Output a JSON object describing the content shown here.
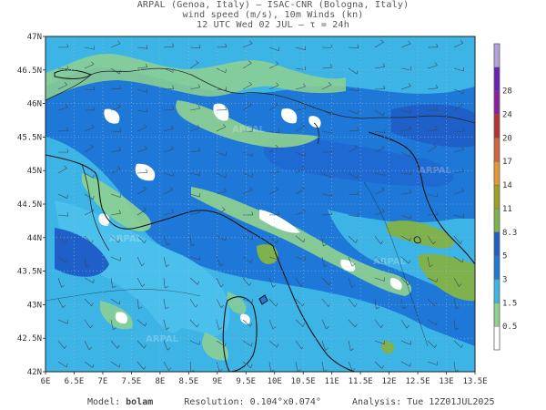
{
  "header": {
    "line1": "ARPAL (Genoa, Italy)  —  ISAC-CNR (Bologna, Italy)",
    "line2": "wind speed (m/s), 10m Winds (kn)",
    "line3": "12 UTC Wed 02 JUL  —  τ = 24h"
  },
  "map": {
    "lat_ticks": [
      "47N",
      "46.5N",
      "46N",
      "45.5N",
      "45N",
      "44.5N",
      "44N",
      "43.5N",
      "43N",
      "42.5N",
      "42N"
    ],
    "lon_ticks": [
      "6E",
      "6.5E",
      "7E",
      "7.5E",
      "8E",
      "8.5E",
      "9E",
      "9.5E",
      "10E",
      "10.5E",
      "11E",
      "11.5E",
      "12E",
      "12.5E",
      "13E",
      "13.5E"
    ],
    "lon_range": [
      6,
      13.5
    ],
    "lat_range": [
      42,
      47
    ],
    "watermark": "ARPAL"
  },
  "colorbar": {
    "labels": [
      "0.5",
      "1.5",
      "3",
      "5",
      "8.3",
      "11",
      "14",
      "17",
      "20",
      "24",
      "28"
    ],
    "colors": [
      "#ffffff",
      "#8fd18f",
      "#3cb4e6",
      "#1e78d7",
      "#1e5fc8",
      "#7fb24c",
      "#a0a020",
      "#e69632",
      "#d2643c",
      "#b43232",
      "#8c1ea0",
      "#6e1eb4",
      "#b4a0dc"
    ]
  },
  "footer": {
    "model_label": "Model:",
    "model_value": "bolam",
    "resolution_label": "Resolution:",
    "resolution_value": "0.104°x0.074°",
    "analysis_label": "Analysis:",
    "analysis_value": "Tue 12Z01JUL2025"
  }
}
